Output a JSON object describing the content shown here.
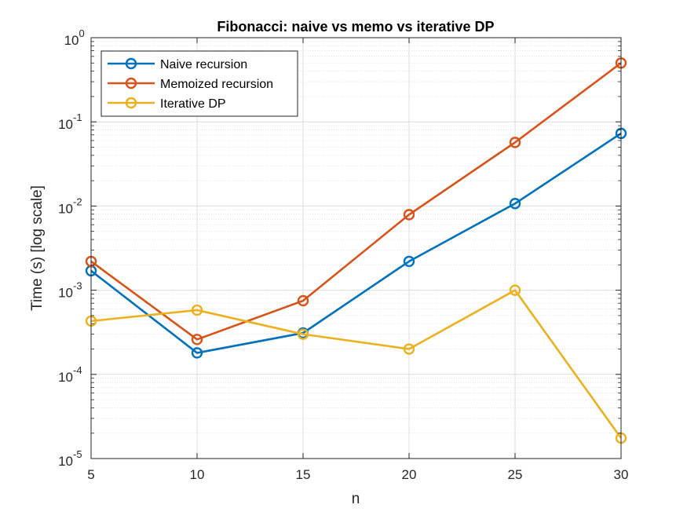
{
  "chart_data": {
    "type": "line",
    "title": "Fibonacci: naive vs memo vs iterative DP",
    "xlabel": "n",
    "ylabel": "Time (s) [log scale]",
    "xlim": [
      5,
      30
    ],
    "ylim": [
      1e-05,
      1
    ],
    "yscale": "log",
    "grid": true,
    "minor_grid": true,
    "legend_position": "top-left",
    "x_ticks": [
      {
        "value": 5,
        "label": "5"
      },
      {
        "value": 10,
        "label": "10"
      },
      {
        "value": 15,
        "label": "15"
      },
      {
        "value": 20,
        "label": "20"
      },
      {
        "value": 25,
        "label": "25"
      },
      {
        "value": 30,
        "label": "30"
      }
    ],
    "y_ticks": [
      {
        "value": 1e-05,
        "base": "10",
        "exp": "-5"
      },
      {
        "value": 0.0001,
        "base": "10",
        "exp": "-4"
      },
      {
        "value": 0.001,
        "base": "10",
        "exp": "-3"
      },
      {
        "value": 0.01,
        "base": "10",
        "exp": "-2"
      },
      {
        "value": 0.1,
        "base": "10",
        "exp": "-1"
      },
      {
        "value": 1,
        "base": "10",
        "exp": "0"
      }
    ],
    "x": [
      5,
      10,
      15,
      20,
      25,
      30
    ],
    "series": [
      {
        "name": "Naive recursion",
        "color": "#0072BD",
        "values": [
          0.0017,
          0.00018,
          0.00031,
          0.0022,
          0.0107,
          0.073
        ]
      },
      {
        "name": "Memoized recursion",
        "color": "#D95319",
        "values": [
          0.0022,
          0.00026,
          0.00075,
          0.0079,
          0.057,
          0.5
        ]
      },
      {
        "name": "Iterative DP",
        "color": "#EDB120",
        "values": [
          0.00043,
          0.00058,
          0.0003,
          0.0002,
          0.001,
          1.75e-05
        ]
      }
    ]
  }
}
